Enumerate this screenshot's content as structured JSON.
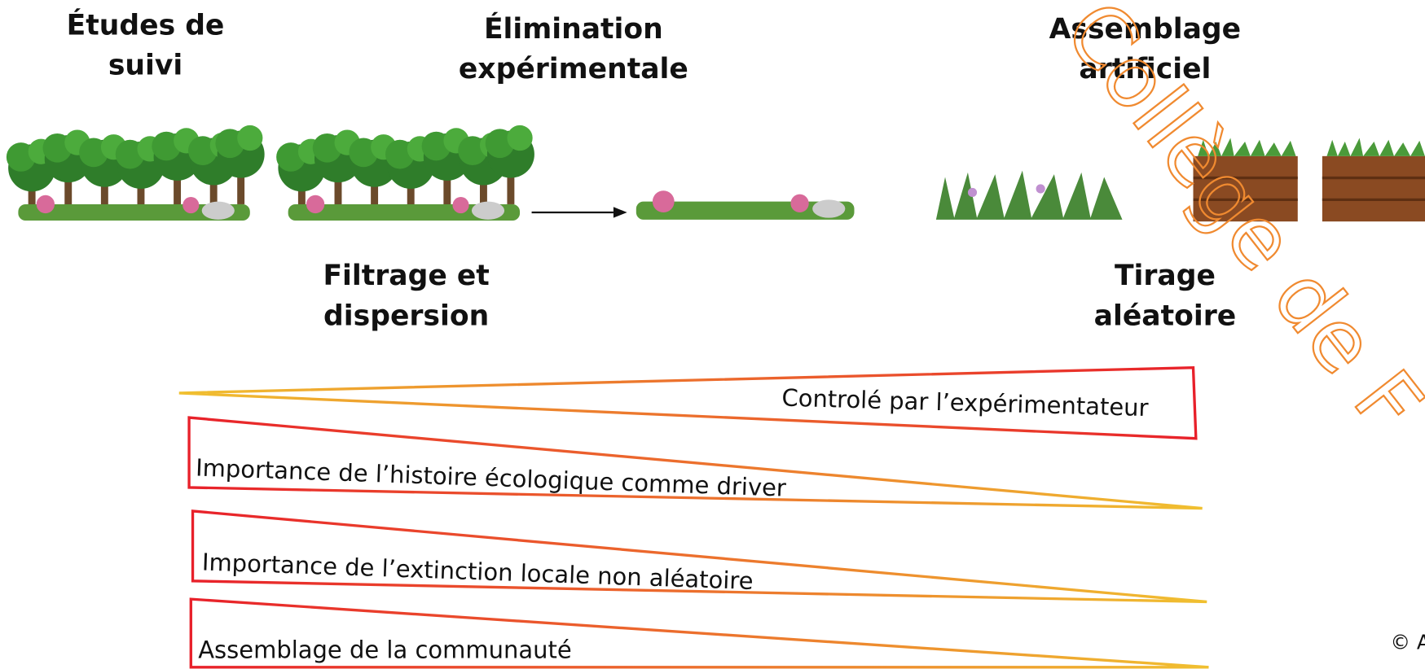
{
  "top_labels": [
    {
      "lines": [
        "Études de",
        "suivi"
      ]
    },
    {
      "lines": [
        "Élimination",
        "expérimentale"
      ]
    },
    {
      "lines": [
        "Assemblage",
        "artificiel"
      ]
    }
  ],
  "bottom_labels": [
    {
      "lines": [
        "Filtrage et",
        "dispersion"
      ]
    },
    {
      "lines": [
        "Tirage",
        "aléatoire"
      ]
    }
  ],
  "gradients": [
    {
      "label": "Controlé par l’expérimentateur"
    },
    {
      "label": "Importance de l’histoire écologique comme driver"
    },
    {
      "label": "Importance de l’extinction locale non aléatoire"
    },
    {
      "label": "Assemblage de la communauté"
    }
  ],
  "watermark": "Collège de F",
  "credit": "© Apolline"
}
